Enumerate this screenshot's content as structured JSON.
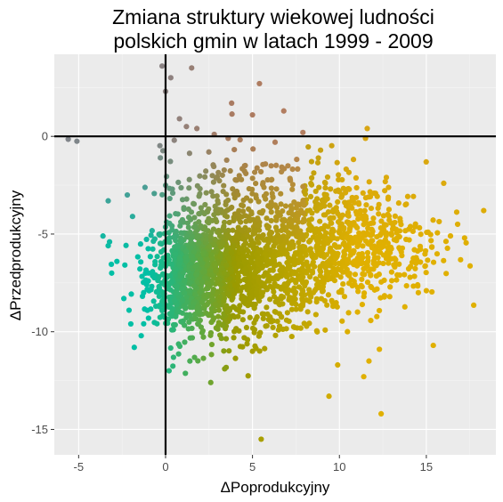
{
  "chart_data": {
    "type": "scatter",
    "title_lines": [
      "Zmiana struktury wiekowej ludności",
      "polskich gmin w latach 1999 - 2009"
    ],
    "xlabel": "ΔPoprodukcyjny",
    "ylabel": "ΔPrzedprodukcyjny",
    "xlim": [
      -6.4,
      19.0
    ],
    "ylim": [
      -16.3,
      4.2
    ],
    "x_ticks": [
      -5,
      0,
      5,
      10,
      15
    ],
    "y_ticks": [
      0,
      -5,
      -10,
      -15
    ],
    "x_tick_labels": [
      "-5",
      "0",
      "5",
      "10",
      "15"
    ],
    "y_tick_labels": [
      "0",
      "-5",
      "-10",
      "-15"
    ],
    "reference_lines": {
      "x": 0,
      "y": 0
    },
    "grid": true,
    "colors": {
      "panel_background": "#ebebeb",
      "grid_major": "#ffffff",
      "grid_minor": "#f5f5f5",
      "reference_line": "#000000",
      "teal": "#00bfa5",
      "olive": "#9a9a00",
      "gold": "#e0b000",
      "mauve": "#b07080"
    },
    "point_count_estimate": 2478,
    "points": [
      [
        -5.6,
        -0.15
      ],
      [
        -5.1,
        -0.25
      ],
      [
        -0.2,
        3.6
      ],
      [
        0.3,
        3.0
      ],
      [
        1.5,
        3.5
      ],
      [
        0.0,
        2.3
      ],
      [
        5.4,
        2.7
      ],
      [
        0.8,
        0.9
      ],
      [
        1.2,
        0.5
      ],
      [
        1.8,
        0.4
      ],
      [
        2.8,
        0.1
      ],
      [
        3.8,
        1.7
      ],
      [
        5.0,
        1.1
      ],
      [
        6.8,
        1.3
      ],
      [
        0.5,
        -0.2
      ],
      [
        -0.3,
        -1.1
      ],
      [
        3.6,
        -0.1
      ],
      [
        6.3,
        -0.3
      ],
      [
        7.9,
        0.2
      ],
      [
        11.6,
        0.4
      ],
      [
        11.5,
        -0.1
      ],
      [
        -3.3,
        -3.3
      ],
      [
        -2.2,
        -3.0
      ],
      [
        -1.9,
        -4.1
      ],
      [
        -3.6,
        -5.1
      ],
      [
        -3.3,
        -5.6
      ],
      [
        -2.8,
        -6.4
      ],
      [
        -3.1,
        -7.0
      ],
      [
        -2.4,
        -8.3
      ],
      [
        -2.1,
        -8.9
      ],
      [
        -2.0,
        -9.6
      ],
      [
        -1.8,
        -10.8
      ],
      [
        0.2,
        -12.0
      ],
      [
        1.4,
        -11.5
      ],
      [
        2.6,
        -12.6
      ],
      [
        3.4,
        -11.9
      ],
      [
        5.0,
        -11.0
      ],
      [
        5.5,
        -15.5
      ],
      [
        9.4,
        -13.3
      ],
      [
        9.9,
        -11.7
      ],
      [
        11.4,
        -12.3
      ],
      [
        11.7,
        -11.5
      ],
      [
        12.3,
        -10.9
      ],
      [
        12.4,
        -14.2
      ],
      [
        15.4,
        -10.7
      ],
      [
        16.0,
        -2.4
      ],
      [
        18.3,
        -3.8
      ],
      [
        17.2,
        -5.2
      ],
      [
        16.8,
        -4.5
      ],
      [
        13.8,
        -3.5
      ],
      [
        12.7,
        -2.1
      ],
      [
        14.5,
        -7.6
      ],
      [
        15.0,
        -7.9
      ]
    ],
    "clusters": [
      {
        "cx": 2.0,
        "cy": -6.9,
        "sx": 1.5,
        "sy": 1.3,
        "n": 600
      },
      {
        "cx": 4.4,
        "cy": -6.8,
        "sx": 2.0,
        "sy": 1.6,
        "n": 560
      },
      {
        "cx": 7.8,
        "cy": -6.0,
        "sx": 2.4,
        "sy": 1.6,
        "n": 560
      },
      {
        "cx": 11.5,
        "cy": -5.4,
        "sx": 2.2,
        "sy": 1.5,
        "n": 360
      },
      {
        "cx": 0.6,
        "cy": -7.6,
        "sx": 0.9,
        "sy": 1.4,
        "n": 170
      },
      {
        "cx": 3.2,
        "cy": -2.8,
        "sx": 1.7,
        "sy": 1.1,
        "n": 110
      },
      {
        "cx": 8.5,
        "cy": -2.5,
        "sx": 1.6,
        "sy": 0.9,
        "n": 70
      },
      {
        "cx": 4.6,
        "cy": -9.8,
        "sx": 1.6,
        "sy": 0.8,
        "n": 45
      }
    ]
  }
}
